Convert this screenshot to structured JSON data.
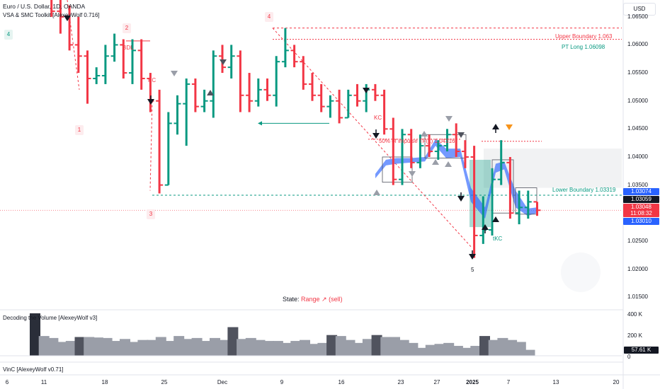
{
  "header": {
    "symbol_title": "Euro / U.S. Dollar, 1D, OANDA",
    "indicator_name": "VSA & SMC Toolkit [AlexeyWolf 0.716]",
    "currency_button": "USD"
  },
  "panes": {
    "volume_title": "Decoding the Volume [AlexeyWolf v3]",
    "vinc_title": "VinC [AlexeyWolf v0.71]",
    "volume_last_value": "57.61 K",
    "volume_axis": [
      "400 K",
      "200 K",
      "0"
    ]
  },
  "price_axis": {
    "ticks": [
      "1.06500",
      "1.06000",
      "1.05500",
      "1.05000",
      "1.04500",
      "1.04000",
      "1.03500",
      "1.02500",
      "1.02000",
      "1.01500"
    ],
    "tags": [
      {
        "text": "1.03074",
        "color": "#2962ff"
      },
      {
        "text": "1.03059",
        "color": "#131722"
      },
      {
        "text": "1.03048",
        "color": "#f23645"
      },
      {
        "text": "11:08:32",
        "color": "#f23645"
      },
      {
        "text": "1.03010",
        "color": "#2962ff"
      }
    ]
  },
  "time_axis": {
    "labels": [
      "6",
      "11",
      "18",
      "25",
      "Dec",
      "9",
      "16",
      "23",
      "27",
      "2025",
      "7",
      "13",
      "20"
    ]
  },
  "annotations": {
    "upper_boundary": "Upper Boundary 1.063",
    "pt_long": "PT Long 1.06098",
    "lower_boundary": "Lower Boundary 1.03319",
    "fifty_impulse": "50% of impulse TF(1) 1.04316",
    "bdl": "BDL",
    "kc_1": "KC",
    "kc_2": "KC",
    "tkc": "tKC",
    "wave_labels": [
      "4",
      "2",
      "4",
      "1",
      "3",
      "5"
    ],
    "state_label": "State:",
    "state_value": "Range ↗ (sell)"
  },
  "colors": {
    "bull": "#089981",
    "bear": "#f23645",
    "band": "#2962ff",
    "vol_bar": "#9a9ea8",
    "vol_dark": "#50535e"
  },
  "chart_data": {
    "type": "ohlc",
    "title": "Euro / U.S. Dollar, 1D, OANDA",
    "y_range": [
      1.013,
      1.068
    ],
    "bars": [
      {
        "o": 1.0705,
        "h": 1.072,
        "l": 1.068,
        "c": 1.069
      },
      {
        "o": 1.069,
        "h": 1.07,
        "l": 1.065,
        "c": 1.066
      },
      {
        "o": 1.066,
        "h": 1.068,
        "l": 1.062,
        "c": 1.065
      },
      {
        "o": 1.065,
        "h": 1.067,
        "l": 1.059,
        "c": 1.06
      },
      {
        "o": 1.06,
        "h": 1.065,
        "l": 1.055,
        "c": 1.058
      },
      {
        "o": 1.058,
        "h": 1.059,
        "l": 1.0495,
        "c": 1.054
      },
      {
        "o": 1.054,
        "h": 1.056,
        "l": 1.053,
        "c": 1.0545
      },
      {
        "o": 1.0545,
        "h": 1.06,
        "l": 1.053,
        "c": 1.058
      },
      {
        "o": 1.058,
        "h": 1.062,
        "l": 1.057,
        "c": 1.06
      },
      {
        "o": 1.06,
        "h": 1.061,
        "l": 1.054,
        "c": 1.055
      },
      {
        "o": 1.055,
        "h": 1.061,
        "l": 1.053,
        "c": 1.059
      },
      {
        "o": 1.059,
        "h": 1.061,
        "l": 1.052,
        "c": 1.054
      },
      {
        "o": 1.054,
        "h": 1.055,
        "l": 1.048,
        "c": 1.05
      },
      {
        "o": 1.05,
        "h": 1.052,
        "l": 1.0335,
        "c": 1.035
      },
      {
        "o": 1.035,
        "h": 1.048,
        "l": 1.035,
        "c": 1.046
      },
      {
        "o": 1.046,
        "h": 1.051,
        "l": 1.044,
        "c": 1.0495
      },
      {
        "o": 1.0495,
        "h": 1.054,
        "l": 1.042,
        "c": 1.053
      },
      {
        "o": 1.053,
        "h": 1.054,
        "l": 1.048,
        "c": 1.049
      },
      {
        "o": 1.049,
        "h": 1.052,
        "l": 1.048,
        "c": 1.05
      },
      {
        "o": 1.05,
        "h": 1.059,
        "l": 1.047,
        "c": 1.058
      },
      {
        "o": 1.058,
        "h": 1.06,
        "l": 1.055,
        "c": 1.056
      },
      {
        "o": 1.056,
        "h": 1.06,
        "l": 1.054,
        "c": 1.058
      },
      {
        "o": 1.058,
        "h": 1.059,
        "l": 1.048,
        "c": 1.051
      },
      {
        "o": 1.051,
        "h": 1.055,
        "l": 1.048,
        "c": 1.05
      },
      {
        "o": 1.05,
        "h": 1.054,
        "l": 1.049,
        "c": 1.052
      },
      {
        "o": 1.052,
        "h": 1.054,
        "l": 1.05,
        "c": 1.051
      },
      {
        "o": 1.051,
        "h": 1.058,
        "l": 1.049,
        "c": 1.057
      },
      {
        "o": 1.057,
        "h": 1.063,
        "l": 1.056,
        "c": 1.059
      },
      {
        "o": 1.059,
        "h": 1.06,
        "l": 1.056,
        "c": 1.057
      },
      {
        "o": 1.057,
        "h": 1.058,
        "l": 1.052,
        "c": 1.053
      },
      {
        "o": 1.053,
        "h": 1.055,
        "l": 1.05,
        "c": 1.051
      },
      {
        "o": 1.051,
        "h": 1.053,
        "l": 1.048,
        "c": 1.049
      },
      {
        "o": 1.049,
        "h": 1.051,
        "l": 1.047,
        "c": 1.05
      },
      {
        "o": 1.05,
        "h": 1.052,
        "l": 1.046,
        "c": 1.047
      },
      {
        "o": 1.047,
        "h": 1.052,
        "l": 1.047,
        "c": 1.051
      },
      {
        "o": 1.051,
        "h": 1.053,
        "l": 1.049,
        "c": 1.05
      },
      {
        "o": 1.05,
        "h": 1.053,
        "l": 1.048,
        "c": 1.052
      },
      {
        "o": 1.052,
        "h": 1.053,
        "l": 1.05,
        "c": 1.051
      },
      {
        "o": 1.051,
        "h": 1.052,
        "l": 1.044,
        "c": 1.045
      },
      {
        "o": 1.045,
        "h": 1.047,
        "l": 1.035,
        "c": 1.036
      },
      {
        "o": 1.036,
        "h": 1.045,
        "l": 1.035,
        "c": 1.044
      },
      {
        "o": 1.044,
        "h": 1.045,
        "l": 1.038,
        "c": 1.039
      },
      {
        "o": 1.039,
        "h": 1.044,
        "l": 1.038,
        "c": 1.042
      },
      {
        "o": 1.042,
        "h": 1.044,
        "l": 1.04,
        "c": 1.041
      },
      {
        "o": 1.041,
        "h": 1.043,
        "l": 1.0395,
        "c": 1.042
      },
      {
        "o": 1.042,
        "h": 1.045,
        "l": 1.041,
        "c": 1.044
      },
      {
        "o": 1.044,
        "h": 1.046,
        "l": 1.04,
        "c": 1.041
      },
      {
        "o": 1.041,
        "h": 1.043,
        "l": 1.038,
        "c": 1.04
      },
      {
        "o": 1.04,
        "h": 1.042,
        "l": 1.022,
        "c": 1.026
      },
      {
        "o": 1.026,
        "h": 1.033,
        "l": 1.0245,
        "c": 1.027
      },
      {
        "o": 1.027,
        "h": 1.038,
        "l": 1.026,
        "c": 1.036
      },
      {
        "o": 1.036,
        "h": 1.043,
        "l": 1.035,
        "c": 1.039
      },
      {
        "o": 1.039,
        "h": 1.04,
        "l": 1.029,
        "c": 1.03
      },
      {
        "o": 1.03,
        "h": 1.034,
        "l": 1.028,
        "c": 1.031
      },
      {
        "o": 1.031,
        "h": 1.034,
        "l": 1.029,
        "c": 1.032
      },
      {
        "o": 1.032,
        "h": 1.032,
        "l": 1.0295,
        "c": 1.0305
      }
    ],
    "volume": [
      430,
      200,
      180,
      140,
      150,
      190,
      190,
      185,
      180,
      150,
      170,
      140,
      160,
      160,
      190,
      150,
      200,
      170,
      180,
      150,
      180,
      160,
      290,
      170,
      180,
      160,
      150,
      150,
      130,
      150,
      160,
      120,
      130,
      210,
      200,
      160,
      130,
      170,
      210,
      190,
      190,
      160,
      130,
      80,
      110,
      120,
      130,
      100,
      80,
      100,
      200,
      160,
      180,
      160,
      140,
      60
    ],
    "levels": {
      "upper_boundary": 1.063,
      "pt_long": 1.06098,
      "lower_boundary": 1.03319,
      "fifty_impulse": 1.04316,
      "current": 1.03048
    }
  }
}
